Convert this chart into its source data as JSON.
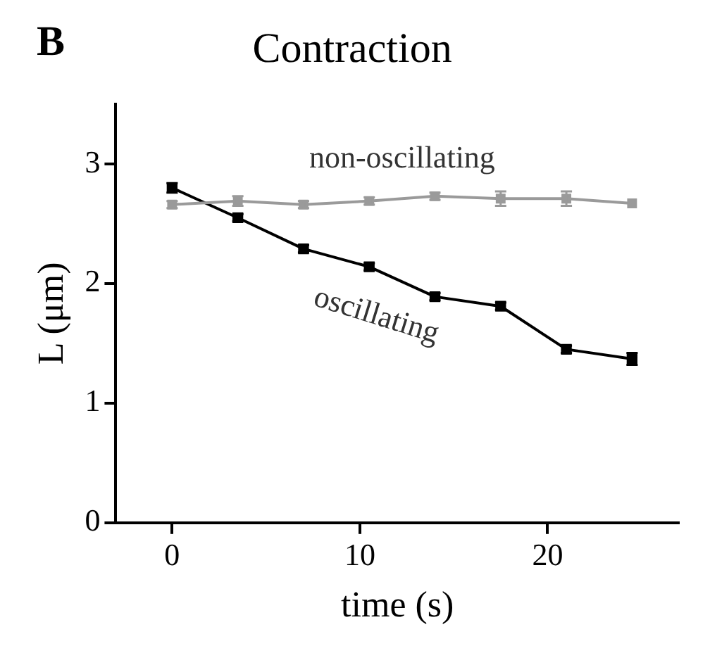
{
  "chart_data": {
    "type": "line",
    "title": "Contraction",
    "xlabel": "time (s)",
    "ylabel": "L (μm)",
    "annotations": [
      "B"
    ],
    "x": [
      0,
      3.5,
      7,
      10.5,
      14,
      17.5,
      21,
      24.5
    ],
    "series": [
      {
        "name": "non-oscillating",
        "color": "#9a9a9a",
        "values": [
          2.66,
          2.69,
          2.66,
          2.69,
          2.73,
          2.71,
          2.71,
          2.67
        ],
        "errors": [
          0.03,
          0.04,
          0.03,
          0.03,
          0.03,
          0.06,
          0.06,
          null
        ]
      },
      {
        "name": "oscillating",
        "color": "#000000",
        "values": [
          2.8,
          2.55,
          2.29,
          2.14,
          1.89,
          1.81,
          1.45,
          1.37
        ],
        "errors": [
          0.04,
          0.03,
          0.03,
          0.03,
          0.03,
          0.03,
          0.03,
          0.05
        ]
      }
    ],
    "xlim": [
      -3,
      27
    ],
    "xticks": [
      0,
      10,
      20
    ],
    "ylim": [
      0,
      3.5
    ],
    "yticks": [
      0,
      1,
      2,
      3
    ],
    "grid": false,
    "legend": false,
    "marker": "square",
    "line_style": "solid"
  }
}
